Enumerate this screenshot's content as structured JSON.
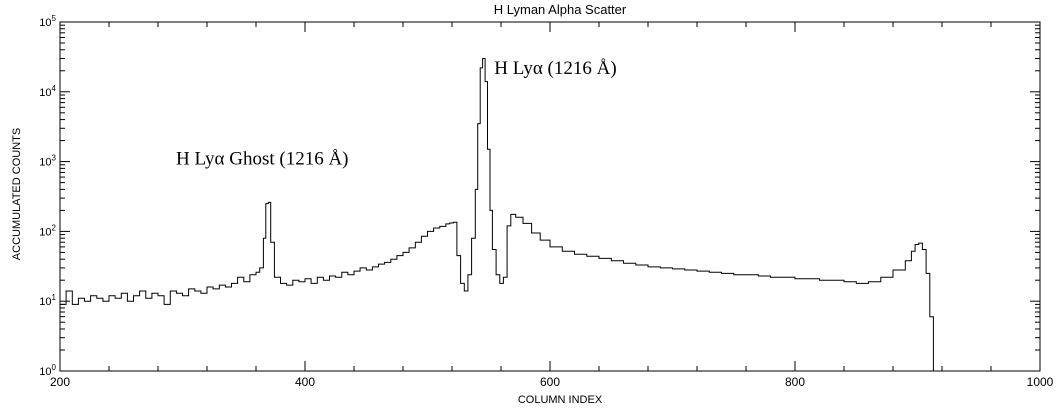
{
  "chart_data": {
    "type": "line",
    "title": "H Lyman Alpha Scatter",
    "xlabel": "COLUMN INDEX",
    "ylabel": "ACCUMULATED COUNTS",
    "xlim": [
      200,
      1000
    ],
    "ylim": [
      1,
      100000
    ],
    "yscale": "log",
    "grid": false,
    "x_ticks": [
      {
        "value": 200,
        "label": "200"
      },
      {
        "value": 400,
        "label": "400"
      },
      {
        "value": 600,
        "label": "600"
      },
      {
        "value": 800,
        "label": "800"
      },
      {
        "value": 1000,
        "label": "1000"
      }
    ],
    "y_ticks": [
      {
        "value": 1,
        "base": "10",
        "exp": "0"
      },
      {
        "value": 10,
        "base": "10",
        "exp": "1"
      },
      {
        "value": 100,
        "base": "10",
        "exp": "2"
      },
      {
        "value": 1000,
        "base": "10",
        "exp": "3"
      },
      {
        "value": 10000,
        "base": "10",
        "exp": "4"
      },
      {
        "value": 100000,
        "base": "10",
        "exp": "5"
      }
    ],
    "annotations": [
      {
        "id": "main",
        "text": "H Lyα (1216 Å)",
        "x": 548,
        "y": 25000
      },
      {
        "id": "ghost",
        "text": "H Lyα Ghost (1216 Å)",
        "x": 370,
        "y": 1100
      }
    ],
    "series": [
      {
        "points": [
          [
            200,
            9
          ],
          [
            205,
            14
          ],
          [
            210,
            9
          ],
          [
            215,
            11
          ],
          [
            220,
            10
          ],
          [
            225,
            12
          ],
          [
            230,
            11
          ],
          [
            235,
            10
          ],
          [
            240,
            12
          ],
          [
            245,
            11
          ],
          [
            250,
            13
          ],
          [
            255,
            10
          ],
          [
            260,
            12
          ],
          [
            265,
            14
          ],
          [
            270,
            11
          ],
          [
            275,
            13
          ],
          [
            280,
            12
          ],
          [
            285,
            9
          ],
          [
            290,
            14
          ],
          [
            295,
            13
          ],
          [
            300,
            12
          ],
          [
            305,
            15
          ],
          [
            310,
            14
          ],
          [
            315,
            13
          ],
          [
            320,
            16
          ],
          [
            325,
            15
          ],
          [
            330,
            17
          ],
          [
            335,
            16
          ],
          [
            340,
            18
          ],
          [
            345,
            22
          ],
          [
            350,
            19
          ],
          [
            355,
            24
          ],
          [
            360,
            26
          ],
          [
            363,
            30
          ],
          [
            366,
            80
          ],
          [
            368,
            250
          ],
          [
            370,
            260
          ],
          [
            372,
            70
          ],
          [
            375,
            22
          ],
          [
            380,
            18
          ],
          [
            385,
            17
          ],
          [
            390,
            20
          ],
          [
            395,
            19
          ],
          [
            400,
            21
          ],
          [
            405,
            18
          ],
          [
            410,
            22
          ],
          [
            415,
            20
          ],
          [
            420,
            23
          ],
          [
            425,
            22
          ],
          [
            430,
            26
          ],
          [
            435,
            24
          ],
          [
            440,
            27
          ],
          [
            445,
            30
          ],
          [
            450,
            28
          ],
          [
            455,
            31
          ],
          [
            460,
            34
          ],
          [
            465,
            36
          ],
          [
            470,
            40
          ],
          [
            475,
            45
          ],
          [
            480,
            50
          ],
          [
            485,
            58
          ],
          [
            490,
            70
          ],
          [
            495,
            85
          ],
          [
            500,
            100
          ],
          [
            505,
            112
          ],
          [
            510,
            118
          ],
          [
            515,
            128
          ],
          [
            518,
            132
          ],
          [
            521,
            135
          ],
          [
            524,
            45
          ],
          [
            527,
            18
          ],
          [
            530,
            14
          ],
          [
            533,
            24
          ],
          [
            536,
            80
          ],
          [
            539,
            400
          ],
          [
            541,
            3500
          ],
          [
            543,
            22000
          ],
          [
            545,
            30000
          ],
          [
            547,
            14000
          ],
          [
            549,
            1500
          ],
          [
            551,
            200
          ],
          [
            553,
            55
          ],
          [
            556,
            24
          ],
          [
            559,
            18
          ],
          [
            562,
            22
          ],
          [
            565,
            120
          ],
          [
            568,
            175
          ],
          [
            572,
            160
          ],
          [
            578,
            130
          ],
          [
            585,
            95
          ],
          [
            592,
            75
          ],
          [
            600,
            60
          ],
          [
            610,
            52
          ],
          [
            620,
            47
          ],
          [
            630,
            44
          ],
          [
            640,
            41
          ],
          [
            650,
            38
          ],
          [
            660,
            35
          ],
          [
            670,
            33
          ],
          [
            680,
            31
          ],
          [
            690,
            30
          ],
          [
            700,
            29
          ],
          [
            710,
            28
          ],
          [
            720,
            27
          ],
          [
            730,
            26
          ],
          [
            740,
            25
          ],
          [
            750,
            24
          ],
          [
            760,
            24
          ],
          [
            770,
            23
          ],
          [
            780,
            22
          ],
          [
            790,
            22
          ],
          [
            800,
            21
          ],
          [
            810,
            21
          ],
          [
            820,
            20
          ],
          [
            830,
            20
          ],
          [
            840,
            19
          ],
          [
            850,
            18
          ],
          [
            860,
            19
          ],
          [
            870,
            22
          ],
          [
            880,
            28
          ],
          [
            890,
            38
          ],
          [
            895,
            52
          ],
          [
            898,
            65
          ],
          [
            901,
            68
          ],
          [
            904,
            55
          ],
          [
            907,
            25
          ],
          [
            910,
            6
          ],
          [
            913,
            1
          ]
        ]
      }
    ]
  }
}
